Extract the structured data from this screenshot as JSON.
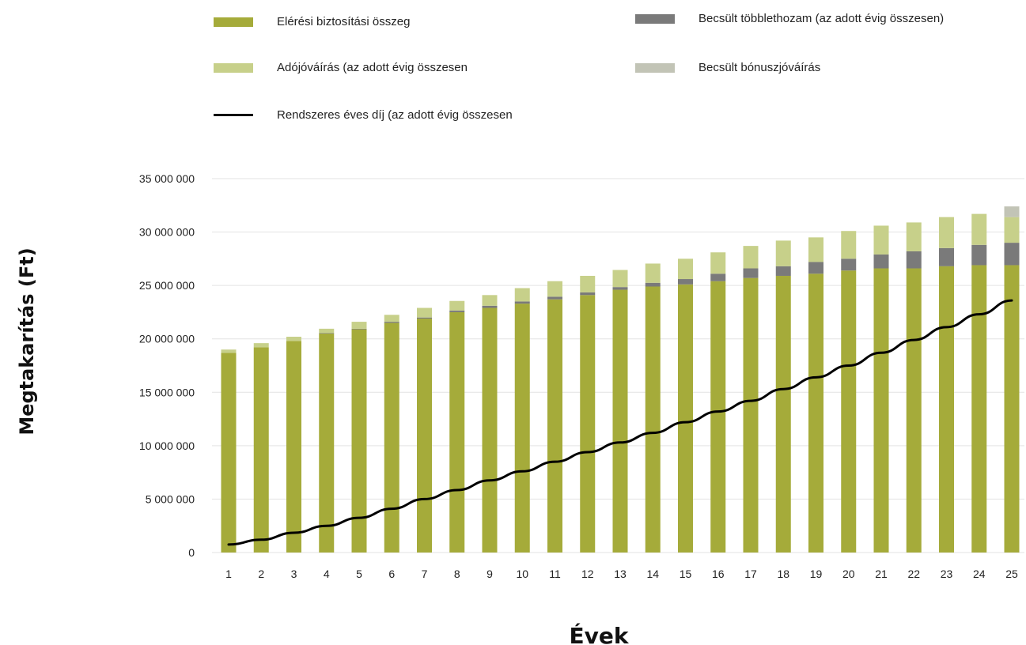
{
  "colors": {
    "base": "#a5ab3a",
    "tax": "#c7d08a",
    "surplus": "#7a7a7a",
    "bonus": "#c2c4b6",
    "line": "#000000",
    "grid": "#e3e3e3"
  },
  "legend": [
    {
      "key": "base",
      "label": "Elérési biztosítási összeg",
      "kind": "bar"
    },
    {
      "key": "surplus",
      "label": "Becsült többlethozam (az adott évig összesen)",
      "kind": "bar"
    },
    {
      "key": "tax",
      "label": "Adójóváírás (az adott évig összesen",
      "kind": "bar"
    },
    {
      "key": "bonus",
      "label": "Becsült bónuszjóváírás",
      "kind": "bar"
    },
    {
      "key": "line",
      "label": "Rendszeres éves díj (az adott évig összesen",
      "kind": "line"
    }
  ],
  "chart_data": {
    "type": "bar",
    "stacked": true,
    "title": "",
    "xlabel": "Évek",
    "ylabel": "Megtakarítás (Ft)",
    "ylim": [
      0,
      35000000
    ],
    "yticks": [
      0,
      5000000,
      10000000,
      15000000,
      20000000,
      25000000,
      30000000,
      35000000
    ],
    "ytick_labels": [
      "0",
      "5 000 000",
      "10 000 000",
      "15 000 000",
      "20 000 000",
      "25 000 000",
      "30 000 000",
      "35 000 000"
    ],
    "grid": true,
    "legend_position": "top",
    "categories": [
      "1",
      "2",
      "3",
      "4",
      "5",
      "6",
      "7",
      "8",
      "9",
      "10",
      "11",
      "12",
      "13",
      "14",
      "15",
      "16",
      "17",
      "18",
      "19",
      "20",
      "21",
      "22",
      "23",
      "24",
      "25"
    ],
    "series": [
      {
        "name": "Elérési biztosítási összeg",
        "key": "base",
        "values": [
          18700000,
          19200000,
          19800000,
          20500000,
          20900000,
          21500000,
          21900000,
          22500000,
          22900000,
          23300000,
          23700000,
          24100000,
          24600000,
          24900000,
          25100000,
          25400000,
          25700000,
          25900000,
          26100000,
          26400000,
          26600000,
          26600000,
          26800000,
          26900000,
          26900000
        ]
      },
      {
        "name": "Becsült többlethozam (az adott évig összesen)",
        "key": "surplus",
        "values": [
          0,
          0,
          0,
          50000,
          50000,
          100000,
          100000,
          150000,
          200000,
          200000,
          250000,
          250000,
          250000,
          350000,
          500000,
          700000,
          900000,
          900000,
          1100000,
          1100000,
          1300000,
          1600000,
          1700000,
          1900000,
          2100000
        ]
      },
      {
        "name": "Adójóváírás (az adott évig összesen",
        "key": "tax",
        "values": [
          300000,
          400000,
          400000,
          400000,
          650000,
          650000,
          900000,
          900000,
          1000000,
          1250000,
          1450000,
          1550000,
          1600000,
          1800000,
          1900000,
          2000000,
          2100000,
          2400000,
          2300000,
          2600000,
          2700000,
          2700000,
          2900000,
          2900000,
          2400000
        ]
      },
      {
        "name": "Becsült bónuszjóváírás",
        "key": "bonus",
        "values": [
          0,
          0,
          0,
          0,
          0,
          0,
          0,
          0,
          0,
          0,
          0,
          0,
          0,
          0,
          0,
          0,
          0,
          0,
          0,
          0,
          0,
          0,
          0,
          0,
          1000000
        ]
      }
    ],
    "line": {
      "name": "Rendszeres éves díj (az adott évig összesen",
      "key": "line",
      "values": [
        750000,
        1200000,
        1850000,
        2500000,
        3250000,
        4100000,
        5000000,
        5850000,
        6750000,
        7600000,
        8500000,
        9400000,
        10300000,
        11200000,
        12200000,
        13200000,
        14200000,
        15300000,
        16400000,
        17500000,
        18700000,
        19900000,
        21100000,
        22300000,
        23600000
      ]
    }
  }
}
